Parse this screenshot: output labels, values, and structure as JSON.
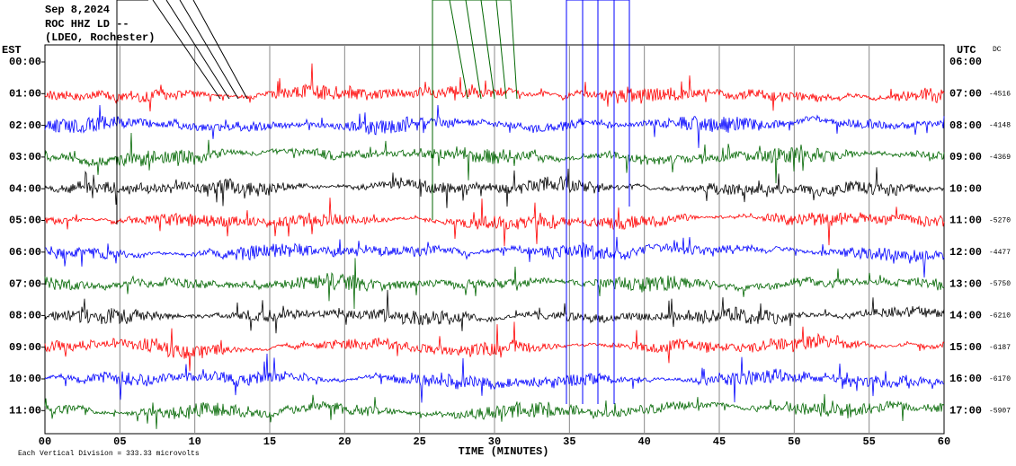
{
  "header": {
    "date": "Sep 8,2024",
    "station": "ROC HHZ LD --",
    "network": "(LDEO, Rochester)"
  },
  "left_axis": {
    "title": "EST",
    "labels": [
      "00:00",
      "01:00",
      "02:00",
      "03:00",
      "04:00",
      "05:00",
      "06:00",
      "07:00",
      "08:00",
      "09:00",
      "10:00",
      "11:00"
    ]
  },
  "right_axis": {
    "title": "UTC",
    "labels": [
      "06:00",
      "07:00",
      "08:00",
      "09:00",
      "10:00",
      "11:00",
      "12:00",
      "13:00",
      "14:00",
      "15:00",
      "16:00",
      "17:00"
    ]
  },
  "dc": {
    "title": "DC",
    "values": [
      null,
      "-4516",
      "-4148",
      "-4369",
      null,
      "-5270",
      "-4477",
      "-5750",
      "-6210",
      "-6187",
      "-6170",
      "-5907"
    ]
  },
  "x_axis": {
    "ticks": [
      "00",
      "05",
      "10",
      "15",
      "20",
      "25",
      "30",
      "35",
      "40",
      "45",
      "50",
      "55",
      "60"
    ],
    "title": "TIME (MINUTES)"
  },
  "footer": "Each Vertical Division =  333.33 microvolts"
}
